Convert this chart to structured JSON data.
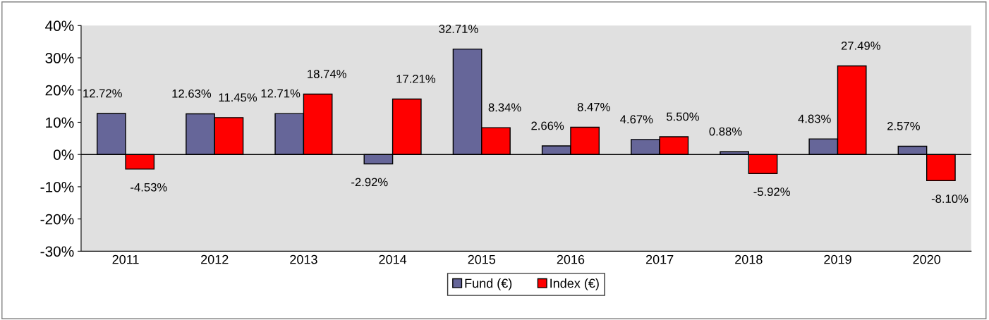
{
  "chart_data": {
    "type": "bar",
    "categories": [
      "2011",
      "2012",
      "2013",
      "2014",
      "2015",
      "2016",
      "2017",
      "2018",
      "2019",
      "2020"
    ],
    "series": [
      {
        "name": "Fund (€)",
        "color": "#666699",
        "values": [
          12.72,
          12.63,
          12.71,
          -2.92,
          32.71,
          2.66,
          4.67,
          0.88,
          4.83,
          2.57
        ],
        "value_labels": [
          "12.72%",
          "12.63%",
          "12.71%",
          "-2.92%",
          "32.71%",
          "2.66%",
          "4.67%",
          "0.88%",
          "4.83%",
          "2.57%"
        ]
      },
      {
        "name": "Index (€)",
        "color": "#ff0000",
        "values": [
          -4.53,
          11.45,
          18.74,
          17.21,
          8.34,
          8.47,
          5.5,
          -5.92,
          27.49,
          -8.1
        ],
        "value_labels": [
          "-4.53%",
          "11.45%",
          "18.74%",
          "17.21%",
          "8.34%",
          "8.47%",
          "5.50%",
          "-5.92%",
          "27.49%",
          "-8.10%"
        ]
      }
    ],
    "ylim": [
      -30,
      40
    ],
    "yticks": [
      {
        "value": -30,
        "label": "-30%"
      },
      {
        "value": -20,
        "label": "-20%"
      },
      {
        "value": -10,
        "label": "-10%"
      },
      {
        "value": 0,
        "label": "0%"
      },
      {
        "value": 10,
        "label": "10%"
      },
      {
        "value": 20,
        "label": "20%"
      },
      {
        "value": 30,
        "label": "30%"
      },
      {
        "value": 40,
        "label": "40%"
      }
    ],
    "legend": "bottom"
  }
}
